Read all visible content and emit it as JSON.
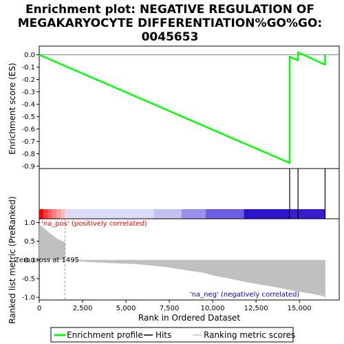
{
  "chart_data": {
    "type": "line",
    "title_lines": [
      "Enrichment plot: NEGATIVE REGULATION OF",
      "MEGAKARYOCYTE DIFFERENTIATION%GO%GO:",
      "0045653"
    ],
    "es_panel": {
      "ylabel": "Enrichment score (ES)",
      "ylim": [
        -0.92,
        0.07
      ],
      "yticks": [
        0.0,
        -0.1,
        -0.2,
        -0.3,
        -0.4,
        -0.5,
        -0.6,
        -0.7,
        -0.8,
        -0.9
      ],
      "ytick_labels": [
        "0.0",
        "-0.1",
        "-0.2",
        "-0.3",
        "-0.4",
        "-0.5",
        "-0.6",
        "-0.7",
        "-0.8",
        "-0.9"
      ],
      "series": [
        {
          "name": "Enrichment profile",
          "color": "#00ff00",
          "x": [
            0,
            14440,
            14440,
            14920,
            14920,
            16480,
            16480
          ],
          "y": [
            0.0,
            -0.875,
            -0.015,
            -0.045,
            0.02,
            -0.08,
            0.0
          ]
        }
      ]
    },
    "hits_panel": {
      "hit_positions": [
        14440,
        14920,
        16480
      ],
      "color_bar_colors": [
        "#ff0000",
        "#ff6b6b",
        "#ffaaaa",
        "#d0c8f8",
        "#a09af0",
        "#6a5ce0",
        "#2a10c8"
      ]
    },
    "metric_panel": {
      "ylabel": "Ranked list metric (PreRanked)",
      "ylim": [
        -1.07,
        1.1
      ],
      "yticks": [
        1.0,
        0.5,
        0.0,
        -0.5,
        -1.0
      ],
      "ytick_labels": [
        "1.0",
        "0.5",
        "0.0",
        "-0.5",
        "-1.0"
      ],
      "x": [
        0,
        200,
        400,
        600,
        800,
        1000,
        1200,
        1495,
        1500,
        3000,
        4500,
        5500,
        6500,
        7500,
        8000,
        8500,
        9000,
        9500,
        10000,
        10500,
        11000,
        11500,
        12000,
        12500,
        13000,
        13500,
        14000,
        14500,
        15000,
        15500,
        16000,
        16400,
        16500
      ],
      "y": [
        0.95,
        0.88,
        0.8,
        0.72,
        0.65,
        0.58,
        0.53,
        0.48,
        0.0,
        -0.06,
        -0.09,
        -0.11,
        -0.15,
        -0.2,
        -0.24,
        -0.28,
        -0.31,
        -0.35,
        -0.41,
        -0.46,
        -0.5,
        -0.55,
        -0.6,
        -0.64,
        -0.68,
        -0.72,
        -0.76,
        -0.81,
        -0.85,
        -0.89,
        -0.93,
        -0.97,
        -1.02
      ],
      "pos_label": "'na_pos' (positively correlated)",
      "neg_label": "'na_neg' (negatively correlated)",
      "zero_cross_label": "Zero cross at 1495",
      "zero_cross": 1495,
      "pos_color": "#ff0000",
      "neg_color": "#0000cc"
    },
    "xlabel": "Rank in Ordered Dataset",
    "xlim": [
      0,
      16500
    ],
    "xticks": [
      0,
      2500,
      5000,
      7500,
      10000,
      12500,
      15000
    ],
    "xtick_labels": [
      "0",
      "2,500",
      "5,000",
      "7,500",
      "10,000",
      "12,500",
      "15,000"
    ],
    "legend": [
      {
        "label": "Enrichment profile",
        "color": "#00ff00"
      },
      {
        "label": "Hits",
        "color": "#000000"
      },
      {
        "label": "Ranking metric scores",
        "color": "#c0c0c0"
      }
    ]
  }
}
